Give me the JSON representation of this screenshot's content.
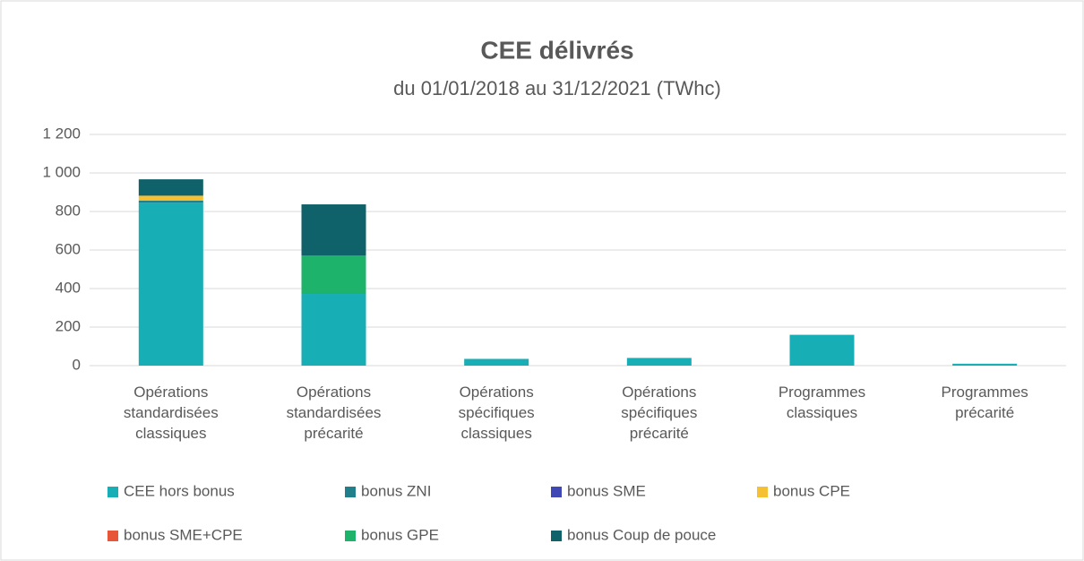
{
  "chart_data": {
    "type": "stacked_bar",
    "title": "CEE délivrés",
    "subtitle": "du 01/01/2018 au 31/12/2021 (TWhc)",
    "categories": [
      "Opérations standardisées classiques",
      "Opérations standardisées précarité",
      "Opérations spécifiques classiques",
      "Opérations spécifiques précarité",
      "Programmes classiques",
      "Programmes précarité"
    ],
    "series": [
      {
        "name": "CEE hors bonus",
        "color": "#17aeb5",
        "values": [
          845,
          372,
          35,
          40,
          160,
          10
        ]
      },
      {
        "name": "bonus ZNI",
        "color": "#1f7f8a",
        "values": [
          12,
          0,
          0,
          0,
          0,
          0
        ]
      },
      {
        "name": "bonus SME",
        "color": "#3f48b5",
        "values": [
          0,
          0,
          0,
          0,
          0,
          0
        ]
      },
      {
        "name": "bonus CPE",
        "color": "#f5c032",
        "values": [
          25,
          0,
          0,
          0,
          0,
          0
        ]
      },
      {
        "name": "bonus SME+CPE",
        "color": "#e8563a",
        "values": [
          0,
          0,
          0,
          0,
          0,
          0
        ]
      },
      {
        "name": "bonus GPE",
        "color": "#1db36b",
        "values": [
          0,
          200,
          0,
          0,
          0,
          0
        ]
      },
      {
        "name": "bonus Coup de pouce",
        "color": "#0f6269",
        "values": [
          85,
          265,
          0,
          0,
          0,
          0
        ]
      }
    ],
    "ylim": [
      0,
      1200
    ],
    "yticks": [
      0,
      200,
      400,
      600,
      800,
      {
        "value": 1000,
        "label": "1 000"
      },
      {
        "value": 1200,
        "label": "1 200"
      }
    ],
    "grid": true
  }
}
